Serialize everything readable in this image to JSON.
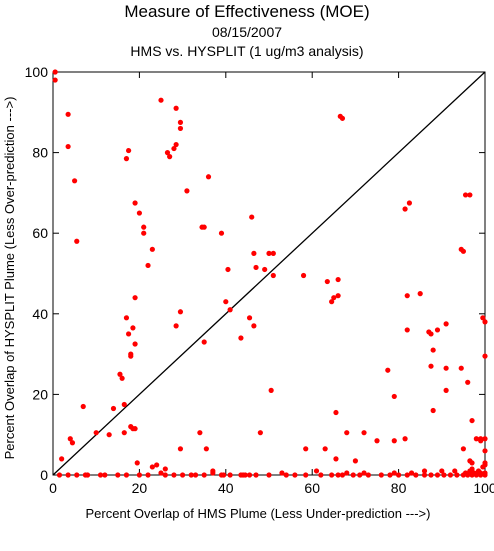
{
  "chart_data": {
    "type": "scatter",
    "title": "Measure of Effectiveness (MOE)",
    "subtitle": "08/15/2007",
    "subtitle2": "HMS vs. HYSPLIT  (1 ug/m3 analysis)",
    "xlabel": "Percent Overlap of HMS Plume (Less Under-prediction --->)",
    "ylabel": "Percent Overlap of HYSPLIT Plume (Less Over-prediction --->)",
    "xlim": [
      0,
      100
    ],
    "ylim": [
      0,
      100
    ],
    "xticks": [
      0,
      20,
      40,
      60,
      80,
      100
    ],
    "yticks": [
      0,
      20,
      40,
      60,
      80,
      100
    ],
    "reference_line": "y = x",
    "point_color": "#ff0000",
    "grid": false,
    "points": [
      [
        0.5,
        100
      ],
      [
        0.5,
        98
      ],
      [
        2,
        4
      ],
      [
        3.5,
        89.5
      ],
      [
        3.5,
        81.5
      ],
      [
        4,
        9
      ],
      [
        4.5,
        8
      ],
      [
        5,
        73
      ],
      [
        5.5,
        58
      ],
      [
        7,
        17
      ],
      [
        10,
        10.5
      ],
      [
        13,
        10
      ],
      [
        14,
        16.5
      ],
      [
        15.5,
        25
      ],
      [
        16,
        24
      ],
      [
        16.5,
        17.5
      ],
      [
        16.5,
        10.5
      ],
      [
        17,
        39
      ],
      [
        17,
        78.5
      ],
      [
        17.5,
        80.5
      ],
      [
        17.5,
        35
      ],
      [
        18,
        30
      ],
      [
        18,
        29.5
      ],
      [
        18,
        12
      ],
      [
        18.5,
        36.5
      ],
      [
        18.5,
        11.5
      ],
      [
        19,
        44
      ],
      [
        19,
        67.5
      ],
      [
        19,
        11.5
      ],
      [
        19,
        32.5
      ],
      [
        19.5,
        3
      ],
      [
        20,
        65
      ],
      [
        21,
        60
      ],
      [
        21,
        61.5
      ],
      [
        22,
        52
      ],
      [
        23,
        56
      ],
      [
        24,
        2.5
      ],
      [
        25,
        93
      ],
      [
        26,
        1.5
      ],
      [
        26.5,
        80
      ],
      [
        27,
        79
      ],
      [
        28,
        81
      ],
      [
        28.5,
        91
      ],
      [
        28.5,
        82
      ],
      [
        28.5,
        37
      ],
      [
        29.5,
        87.5
      ],
      [
        29.5,
        86
      ],
      [
        29.5,
        40.5
      ],
      [
        29.5,
        6.5
      ],
      [
        31,
        70.5
      ],
      [
        34,
        10.5
      ],
      [
        34.5,
        61.5
      ],
      [
        35,
        61.5
      ],
      [
        35,
        33
      ],
      [
        35.5,
        6.5
      ],
      [
        36,
        74
      ],
      [
        37,
        1
      ],
      [
        39,
        60
      ],
      [
        39,
        0
      ],
      [
        40,
        43
      ],
      [
        40.5,
        51
      ],
      [
        41,
        41
      ],
      [
        43.5,
        34
      ],
      [
        44,
        0
      ],
      [
        45.5,
        39
      ],
      [
        46,
        64
      ],
      [
        46.5,
        55
      ],
      [
        46.5,
        37
      ],
      [
        47,
        51.5
      ],
      [
        48,
        10.5
      ],
      [
        49,
        51
      ],
      [
        50,
        55
      ],
      [
        50.5,
        21
      ],
      [
        51,
        49.5
      ],
      [
        51,
        55
      ],
      [
        58,
        49.5
      ],
      [
        58.5,
        6.5
      ],
      [
        63,
        6.5
      ],
      [
        63.5,
        48
      ],
      [
        64.5,
        43
      ],
      [
        65,
        44
      ],
      [
        65.5,
        15.5
      ],
      [
        65.5,
        4
      ],
      [
        66,
        48.5
      ],
      [
        66,
        44.5
      ],
      [
        66.5,
        89
      ],
      [
        67,
        88.5
      ],
      [
        68,
        10.5
      ],
      [
        70,
        3.5
      ],
      [
        72,
        10.5
      ],
      [
        75,
        8.5
      ],
      [
        77.5,
        26
      ],
      [
        79,
        8.5
      ],
      [
        79,
        19.5
      ],
      [
        81.5,
        66
      ],
      [
        81.5,
        9
      ],
      [
        82,
        44.5
      ],
      [
        82,
        36
      ],
      [
        82.5,
        67.5
      ],
      [
        85,
        45
      ],
      [
        87,
        35.5
      ],
      [
        87.5,
        27
      ],
      [
        87.5,
        35
      ],
      [
        88,
        31
      ],
      [
        88,
        16
      ],
      [
        89,
        36
      ],
      [
        91,
        21
      ],
      [
        91,
        37.5
      ],
      [
        91,
        26.5
      ],
      [
        94.5,
        26.5
      ],
      [
        94.5,
        56
      ],
      [
        95,
        55.5
      ],
      [
        95,
        6.5
      ],
      [
        95.5,
        69.5
      ],
      [
        96.5,
        69.5
      ],
      [
        96,
        23
      ],
      [
        96.5,
        3.5
      ],
      [
        97,
        13.5
      ],
      [
        97,
        3
      ],
      [
        98,
        9
      ],
      [
        99,
        9
      ],
      [
        99.5,
        39
      ],
      [
        99,
        8.5
      ],
      [
        99.5,
        2
      ],
      [
        100,
        38
      ],
      [
        100,
        29.5
      ],
      [
        100,
        6
      ],
      [
        100,
        9
      ],
      [
        100,
        2.5
      ],
      [
        100,
        3
      ],
      [
        98.5,
        1
      ],
      [
        97.5,
        0.5
      ],
      [
        96.5,
        1
      ],
      [
        95.5,
        0.5
      ],
      [
        1.5,
        0
      ],
      [
        3.5,
        0
      ],
      [
        5.5,
        0
      ],
      [
        7.5,
        0
      ],
      [
        8,
        0
      ],
      [
        11,
        0
      ],
      [
        12,
        0
      ],
      [
        15,
        0
      ],
      [
        17,
        0
      ],
      [
        20,
        0
      ],
      [
        22,
        0
      ],
      [
        26,
        0
      ],
      [
        28,
        0
      ],
      [
        30,
        0
      ],
      [
        32,
        0
      ],
      [
        33,
        0
      ],
      [
        35,
        0
      ],
      [
        39.5,
        0
      ],
      [
        41,
        0
      ],
      [
        43.5,
        0
      ],
      [
        44.5,
        0
      ],
      [
        45.5,
        0
      ],
      [
        47,
        0
      ],
      [
        50,
        0
      ],
      [
        54,
        0
      ],
      [
        56,
        0
      ],
      [
        58.5,
        0
      ],
      [
        62,
        0
      ],
      [
        64.5,
        0
      ],
      [
        66,
        0
      ],
      [
        67,
        0
      ],
      [
        69.5,
        0
      ],
      [
        71,
        0
      ],
      [
        73,
        0
      ],
      [
        76,
        0
      ],
      [
        78,
        0
      ],
      [
        80,
        0
      ],
      [
        82,
        0
      ],
      [
        84,
        0
      ],
      [
        86,
        0
      ],
      [
        87.5,
        0
      ],
      [
        89,
        0
      ],
      [
        90.5,
        0
      ],
      [
        92,
        0
      ],
      [
        93.5,
        0
      ],
      [
        95,
        0
      ],
      [
        96,
        0
      ],
      [
        97,
        0
      ],
      [
        98,
        0
      ],
      [
        99,
        0
      ],
      [
        100,
        0
      ],
      [
        100,
        0.5
      ],
      [
        99,
        0.5
      ],
      [
        97,
        1.5
      ],
      [
        93,
        1
      ],
      [
        90,
        1
      ],
      [
        86,
        1
      ],
      [
        83,
        0.5
      ],
      [
        79,
        0.5
      ],
      [
        72,
        0.5
      ],
      [
        68,
        0.5
      ],
      [
        61,
        1
      ],
      [
        53,
        0.5
      ],
      [
        37,
        0.5
      ],
      [
        25,
        0.5
      ],
      [
        23,
        2
      ]
    ]
  }
}
